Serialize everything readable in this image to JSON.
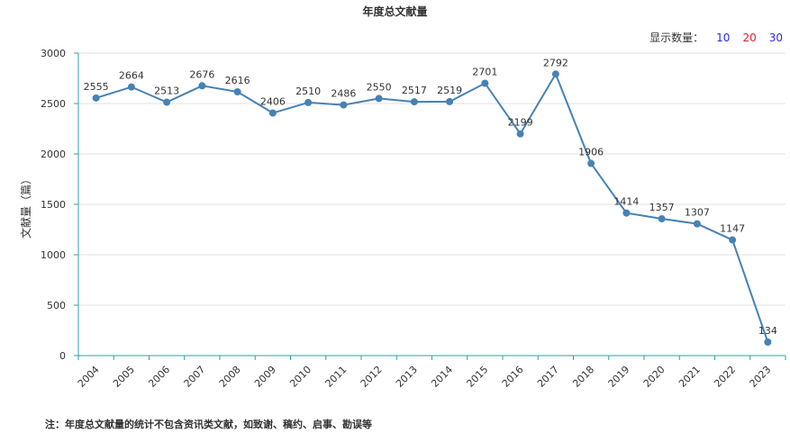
{
  "chart_title": "年度总文献量",
  "display_count": {
    "label": "显示数量：",
    "options": [
      {
        "label": "10",
        "color": "#2a2ae0"
      },
      {
        "label": "20",
        "color": "#e02020"
      },
      {
        "label": "30",
        "color": "#2a2ae0"
      }
    ]
  },
  "footnote": "注：年度总文献量的统计不包含资讯类文献，如致谢、稿约、启事、勘误等",
  "colors": {
    "line": "#4682b4",
    "axis": "#2aa3a3",
    "grid": "#e0e0e0"
  },
  "chart_data": {
    "type": "line",
    "title": "年度总文献量",
    "xlabel": "",
    "ylabel": "文献量（篇）",
    "ylim": [
      0,
      3000
    ],
    "yticks": [
      0,
      500,
      1000,
      1500,
      2000,
      2500,
      3000
    ],
    "grid": true,
    "categories": [
      "2004",
      "2005",
      "2006",
      "2007",
      "2008",
      "2009",
      "2010",
      "2011",
      "2012",
      "2013",
      "2014",
      "2015",
      "2016",
      "2017",
      "2018",
      "2019",
      "2020",
      "2021",
      "2022",
      "2023"
    ],
    "series": [
      {
        "values": [
          2555,
          2664,
          2513,
          2676,
          2616,
          2406,
          2510,
          2486,
          2550,
          2517,
          2519,
          2701,
          2199,
          2792,
          1906,
          1414,
          1357,
          1307,
          1147,
          134
        ]
      }
    ]
  }
}
